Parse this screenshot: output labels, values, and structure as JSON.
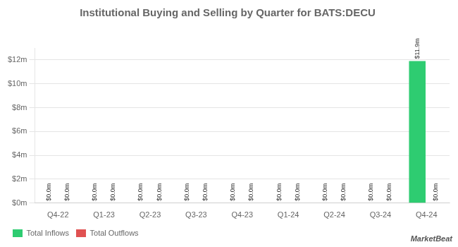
{
  "chart_data": {
    "type": "bar",
    "title": "Institutional Buying and Selling by Quarter for BATS:DECU",
    "categories": [
      "Q4-22",
      "Q1-23",
      "Q2-23",
      "Q3-23",
      "Q4-23",
      "Q1-24",
      "Q2-24",
      "Q3-24",
      "Q4-24"
    ],
    "series": [
      {
        "name": "Total Inflows",
        "color": "#2ecc71",
        "values": [
          0.0,
          0.0,
          0.0,
          0.0,
          0.0,
          0.0,
          0.0,
          0.0,
          11.9
        ],
        "value_labels": [
          "$0.0m",
          "$0.0m",
          "$0.0m",
          "$0.0m",
          "$0.0m",
          "$0.0m",
          "$0.0m",
          "$0.0m",
          "$11.9m"
        ]
      },
      {
        "name": "Total Outflows",
        "color": "#e05252",
        "values": [
          0.0,
          0.0,
          0.0,
          0.0,
          0.0,
          0.0,
          0.0,
          0.0,
          0.0
        ],
        "value_labels": [
          "$0.0m",
          "$0.0m",
          "$0.0m",
          "$0.0m",
          "$0.0m",
          "$0.0m",
          "$0.0m",
          "$0.0m",
          "$0.0m"
        ]
      }
    ],
    "ylim": [
      0,
      13
    ],
    "yticks": [
      {
        "value": 0,
        "label": "$0m"
      },
      {
        "value": 2,
        "label": "$2m"
      },
      {
        "value": 4,
        "label": "$4m"
      },
      {
        "value": 6,
        "label": "$6m"
      },
      {
        "value": 8,
        "label": "$8m"
      },
      {
        "value": 10,
        "label": "$10m"
      },
      {
        "value": 12,
        "label": "$12m"
      }
    ],
    "grid": true,
    "legend": "bottom",
    "data_labels": true,
    "annotations": [
      "MarketBeat"
    ]
  }
}
